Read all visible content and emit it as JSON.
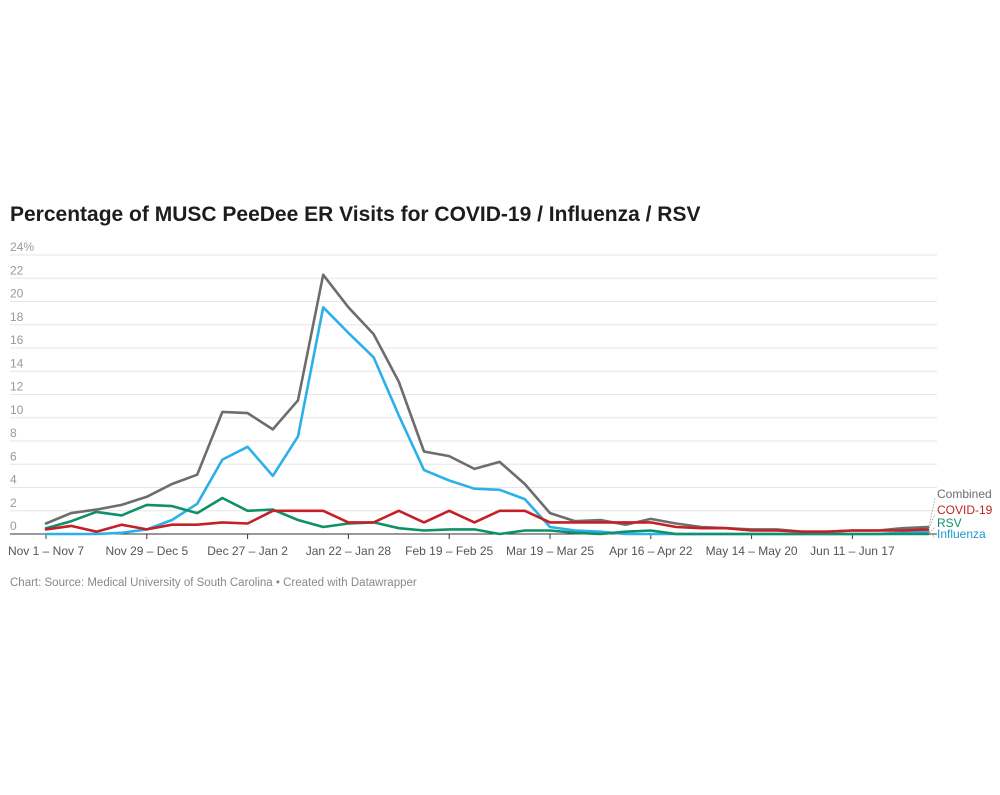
{
  "chart_data": {
    "type": "line",
    "title": "Percentage of MUSC PeeDee ER Visits for COVID-19 / Influenza / RSV",
    "footer": "Chart: Source: Medical University of South Carolina • Created with Datawrapper",
    "ylim": [
      0,
      24
    ],
    "yticks": [
      0,
      2,
      4,
      6,
      8,
      10,
      12,
      14,
      16,
      18,
      20,
      22,
      24
    ],
    "ytick_labels": [
      "0",
      "2",
      "4",
      "6",
      "8",
      "10",
      "12",
      "14",
      "16",
      "18",
      "20",
      "22",
      "24%"
    ],
    "grid": true,
    "x_tick_labels": [
      {
        "index": 0,
        "label": "Nov 1 – Nov 7"
      },
      {
        "index": 4,
        "label": "Nov 29 – Dec 5"
      },
      {
        "index": 8,
        "label": "Dec 27 – Jan 2"
      },
      {
        "index": 12,
        "label": "Jan 22 – Jan 28"
      },
      {
        "index": 16,
        "label": "Feb 19 – Feb 25"
      },
      {
        "index": 20,
        "label": "Mar 19 – Mar 25"
      },
      {
        "index": 24,
        "label": "Apr 16 – Apr 22"
      },
      {
        "index": 28,
        "label": "May 14 – May 20"
      },
      {
        "index": 32,
        "label": "Jun 11 – Jun 17"
      }
    ],
    "series": [
      {
        "name": "Combined",
        "color": "#6d6d6d",
        "values": [
          0.9,
          1.8,
          2.1,
          2.5,
          3.2,
          4.3,
          5.1,
          10.5,
          10.4,
          9.0,
          11.5,
          22.3,
          19.5,
          17.2,
          13.1,
          7.1,
          6.7,
          5.6,
          6.2,
          4.3,
          1.8,
          1.1,
          1.2,
          0.8,
          1.3,
          0.9,
          0.6,
          0.5,
          0.4,
          0.4,
          0.2,
          0.2,
          0.3,
          0.3,
          0.5,
          0.6
        ]
      },
      {
        "name": "COVID-19",
        "color": "#c42127",
        "values": [
          0.4,
          0.7,
          0.2,
          0.8,
          0.4,
          0.8,
          0.8,
          1.0,
          0.9,
          2.0,
          2.0,
          2.0,
          1.0,
          1.0,
          2.0,
          1.0,
          2.0,
          1.0,
          2.0,
          2.0,
          1.0,
          1.0,
          1.0,
          1.0,
          1.0,
          0.6,
          0.5,
          0.5,
          0.3,
          0.3,
          0.2,
          0.2,
          0.3,
          0.3,
          0.3,
          0.4
        ]
      },
      {
        "name": "RSV",
        "color": "#0f9068",
        "values": [
          0.5,
          1.1,
          1.9,
          1.6,
          2.5,
          2.4,
          1.8,
          3.1,
          2.0,
          2.1,
          1.2,
          0.6,
          0.9,
          1.0,
          0.5,
          0.3,
          0.4,
          0.4,
          0.0,
          0.3,
          0.3,
          0.1,
          0.0,
          0.2,
          0.3,
          0.0,
          0.0,
          0.0,
          0.0,
          0.0,
          0.0,
          0.0,
          0.0,
          0.0,
          0.0,
          0.0
        ]
      },
      {
        "name": "Influenza",
        "color": "#2bb0ea",
        "values": [
          0.0,
          0.0,
          0.0,
          0.1,
          0.4,
          1.2,
          2.6,
          6.4,
          7.5,
          5.0,
          8.4,
          19.5,
          17.3,
          15.2,
          10.2,
          5.5,
          4.6,
          3.9,
          3.8,
          3.0,
          0.6,
          0.3,
          0.2,
          0.0,
          0.0,
          0.0,
          0.0,
          0.0,
          0.0,
          0.0,
          0.0,
          0.0,
          0.0,
          0.0,
          0.1,
          0.2
        ]
      }
    ],
    "legend_labels": [
      {
        "name": "Combined",
        "color": "#6d6d6d"
      },
      {
        "name": "COVID-19",
        "color": "#c42127"
      },
      {
        "name": "RSV",
        "color": "#0f9068"
      },
      {
        "name": "Influenza",
        "color": "#1a9ac9"
      }
    ]
  }
}
